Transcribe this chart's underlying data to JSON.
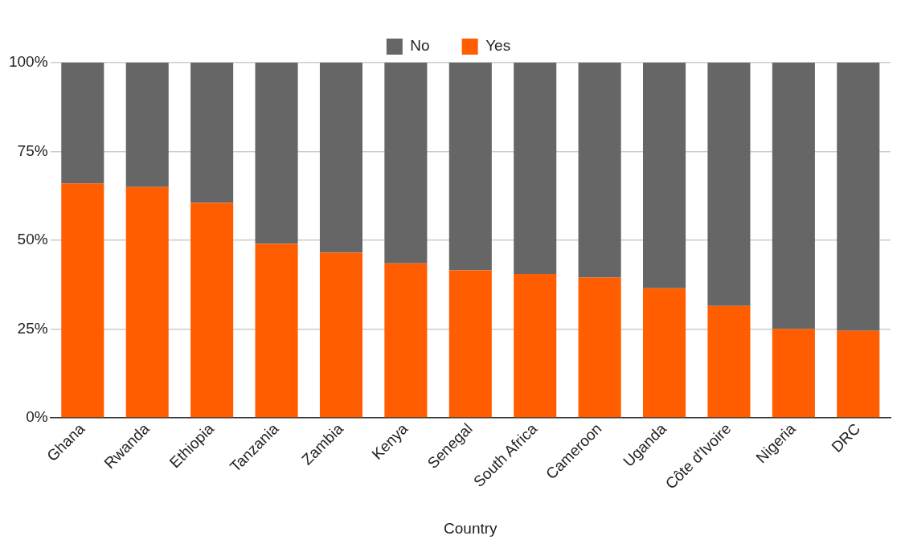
{
  "chart_data": {
    "type": "bar",
    "stacked": true,
    "xlabel": "Country",
    "categories": [
      "Ghana",
      "Rwanda",
      "Ethiopia",
      "Tanzania",
      "Zambia",
      "Kenya",
      "Senegal",
      "South Africa",
      "Cameroon",
      "Uganda",
      "Côte d'Ivoire",
      "Nigeria",
      "DRC"
    ],
    "series": [
      {
        "name": "Yes",
        "color": "#ff5d00",
        "values": [
          66,
          65,
          60.5,
          49,
          46.5,
          43.5,
          41.5,
          40.5,
          39.5,
          36.5,
          31.5,
          25,
          24.5
        ]
      },
      {
        "name": "No",
        "color": "#666666",
        "values": [
          34,
          35,
          39.5,
          51,
          53.5,
          56.5,
          58.5,
          59.5,
          60.5,
          63.5,
          68.5,
          75,
          75.5
        ]
      }
    ],
    "ylim": [
      0,
      100
    ],
    "yticks": [
      {
        "value": 0,
        "label": "0%"
      },
      {
        "value": 25,
        "label": "25%"
      },
      {
        "value": 50,
        "label": "50%"
      },
      {
        "value": 75,
        "label": "75%"
      },
      {
        "value": 100,
        "label": "100%"
      }
    ],
    "grid": "y",
    "legend": "top"
  }
}
